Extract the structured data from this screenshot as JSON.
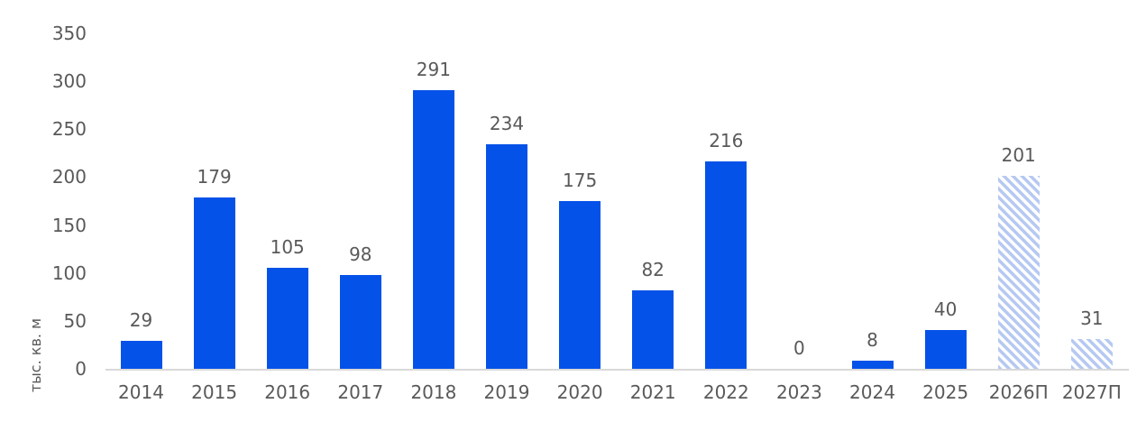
{
  "chart_data": {
    "type": "bar",
    "title": "",
    "xlabel": "",
    "ylabel": "тыс. кв. м",
    "categories": [
      "2014",
      "2015",
      "2016",
      "2017",
      "2018",
      "2019",
      "2020",
      "2021",
      "2022",
      "2023",
      "2024",
      "2025",
      "2026П",
      "2027П"
    ],
    "values": [
      29,
      179,
      105,
      98,
      291,
      234,
      175,
      82,
      216,
      0,
      8,
      40,
      201,
      31
    ],
    "forecast": [
      false,
      false,
      false,
      false,
      false,
      false,
      false,
      false,
      false,
      false,
      false,
      false,
      true,
      true
    ],
    "y_ticks": [
      0,
      50,
      100,
      150,
      200,
      250,
      300,
      350
    ],
    "ylim": [
      0,
      350
    ],
    "grid": false,
    "legend_position": "none",
    "colors": {
      "bar": "#0552e8",
      "forecast_hatch": "#b6c9f2",
      "axis_line": "#d9d9d9",
      "text": "#595959"
    }
  }
}
